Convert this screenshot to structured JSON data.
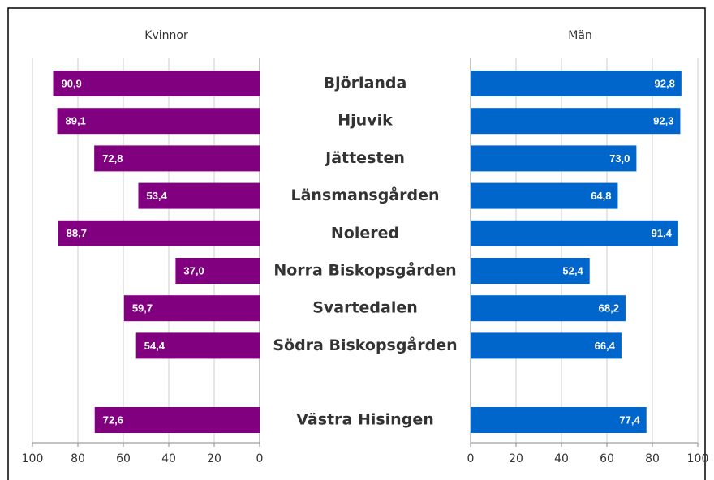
{
  "chart_data": {
    "type": "butterfly-bar",
    "categories": [
      "Björlanda",
      "Hjuvik",
      "Jättesten",
      "Länsmansgården",
      "Nolered",
      "Norra Biskopsgården",
      "Svartedalen",
      "Södra Biskopsgården",
      "Västra Hisingen"
    ],
    "series": [
      {
        "name": "Kvinnor",
        "color": "#800080",
        "values": [
          90.9,
          89.1,
          72.8,
          53.4,
          88.7,
          37.0,
          59.7,
          54.4,
          72.6
        ],
        "value_labels": [
          "90,9",
          "89,1",
          "72,8",
          "53,4",
          "88,7",
          "37,0",
          "59,7",
          "54,4",
          "72,6"
        ]
      },
      {
        "name": "Män",
        "color": "#0066cc",
        "values": [
          92.8,
          92.3,
          73.0,
          64.8,
          91.4,
          52.4,
          68.2,
          66.4,
          77.4
        ],
        "value_labels": [
          "92,8",
          "92,3",
          "73,0",
          "64,8",
          "91,4",
          "52,4",
          "68,2",
          "66,4",
          "77,4"
        ]
      }
    ],
    "xlim": [
      0,
      100
    ],
    "xticks": [
      0,
      20,
      40,
      60,
      80,
      100
    ],
    "grid": true
  }
}
